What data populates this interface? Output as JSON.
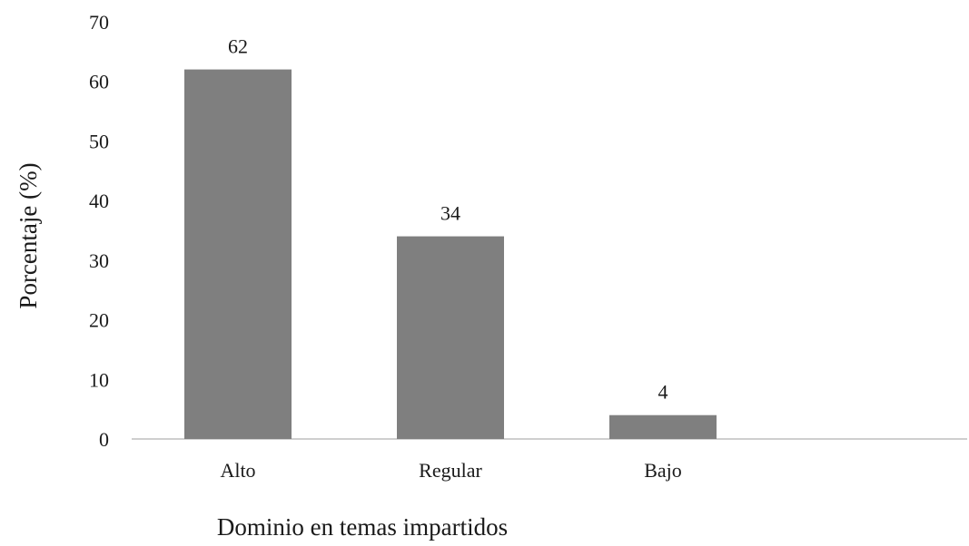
{
  "chart_data": {
    "type": "bar",
    "categories": [
      "Alto",
      "Regular",
      "Bajo"
    ],
    "values": [
      62,
      34,
      4
    ],
    "data_labels": [
      "62",
      "34",
      "4"
    ],
    "title": "",
    "xlabel": "Dominio en temas impartidos",
    "ylabel": "Porcentaje (%)",
    "ylim": [
      0,
      70
    ],
    "yticks": [
      "0",
      "10",
      "20",
      "30",
      "40",
      "50",
      "60",
      "70"
    ],
    "grid": false,
    "legend": "none",
    "bar_color": "#7f7f7f",
    "axis_color": "#bfbfbf"
  }
}
